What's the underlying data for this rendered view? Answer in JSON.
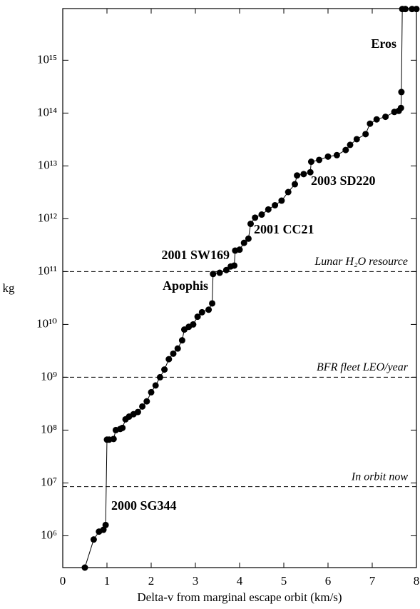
{
  "chart_data": {
    "type": "line",
    "xlabel": "Delta-v from marginal escape orbit (km/s)",
    "ylabel": "kg",
    "log_y": true,
    "color": "#000000",
    "xlim": [
      0,
      8
    ],
    "xticks": [
      0,
      1,
      2,
      3,
      4,
      5,
      6,
      7,
      8
    ],
    "ylim": [
      250000.0,
      9500000000000000.0
    ],
    "yticks": [
      {
        "value": 1000000.0,
        "label": "10⁶"
      },
      {
        "value": 10000000.0,
        "label": "10⁷"
      },
      {
        "value": 100000000.0,
        "label": "10⁸"
      },
      {
        "value": 1000000000.0,
        "label": "10⁹"
      },
      {
        "value": 10000000000.0,
        "label": "10¹⁰"
      },
      {
        "value": 100000000000.0,
        "label": "10¹¹"
      },
      {
        "value": 1000000000000.0,
        "label": "10¹²"
      },
      {
        "value": 10000000000000.0,
        "label": "10¹³"
      },
      {
        "value": 100000000000000.0,
        "label": "10¹⁴"
      },
      {
        "value": 1000000000000000.0,
        "label": "10¹⁵"
      }
    ],
    "reference_lines": [
      {
        "value": 100000000000.0,
        "label": "Lunar H₂O resource"
      },
      {
        "value": 1000000000.0,
        "label": "BFR fleet LEO/year"
      },
      {
        "value": 8500000.0,
        "label": "In orbit now"
      }
    ],
    "annotations": [
      "Eros",
      "2003 SD220",
      "2001 CC21",
      "2001 SW169",
      "Apophis",
      "2000 SG344"
    ],
    "x": [
      0.5,
      0.7,
      0.82,
      0.92,
      0.97,
      1.0,
      1.05,
      1.15,
      1.2,
      1.3,
      1.35,
      1.42,
      1.5,
      1.6,
      1.7,
      1.8,
      1.9,
      2.0,
      2.1,
      2.2,
      2.3,
      2.4,
      2.5,
      2.6,
      2.7,
      2.75,
      2.85,
      2.95,
      3.05,
      3.15,
      3.3,
      3.38,
      3.4,
      3.55,
      3.7,
      3.8,
      3.88,
      3.9,
      4.0,
      4.1,
      4.2,
      4.25,
      4.35,
      4.5,
      4.65,
      4.8,
      4.95,
      5.1,
      5.25,
      5.3,
      5.45,
      5.6,
      5.62,
      5.8,
      6.0,
      6.2,
      6.4,
      6.5,
      6.65,
      6.85,
      6.95,
      7.1,
      7.3,
      7.5,
      7.6,
      7.65,
      7.66,
      7.68,
      7.75,
      7.9,
      8.0
    ],
    "values": [
      250000.0,
      850000.0,
      1200000.0,
      1300000.0,
      1600000.0,
      66000000.0,
      66000000.0,
      68000000.0,
      100000000.0,
      105000000.0,
      110000000.0,
      160000000.0,
      180000000.0,
      200000000.0,
      220000000.0,
      280000000.0,
      350000000.0,
      520000000.0,
      700000000.0,
      1000000000.0,
      1400000000.0,
      2200000000.0,
      2800000000.0,
      3500000000.0,
      5000000000.0,
      8000000000.0,
      9000000000.0,
      10000000000.0,
      14000000000.0,
      17000000000.0,
      19000000000.0,
      25000000000.0,
      90000000000.0,
      95000000000.0,
      107000000000.0,
      125000000000.0,
      130000000000.0,
      250000000000.0,
      260000000000.0,
      350000000000.0,
      420000000000.0,
      800000000000.0,
      1050000000000.0,
      1200000000000.0,
      1500000000000.0,
      1800000000000.0,
      2200000000000.0,
      3200000000000.0,
      4500000000000.0,
      6600000000000.0,
      7000000000000.0,
      7600000000000.0,
      12000000000000.0,
      13000000000000.0,
      15000000000000.0,
      16000000000000.0,
      20000000000000.0,
      25000000000000.0,
      32000000000000.0,
      40000000000000.0,
      63000000000000.0,
      76000000000000.0,
      85000000000000.0,
      105000000000000.0,
      110000000000000.0,
      125000000000000.0,
      250000000000000.0,
      9300000000000000.0,
      9300000000000000.0,
      9300000000000000.0,
      9300000000000000.0
    ]
  }
}
